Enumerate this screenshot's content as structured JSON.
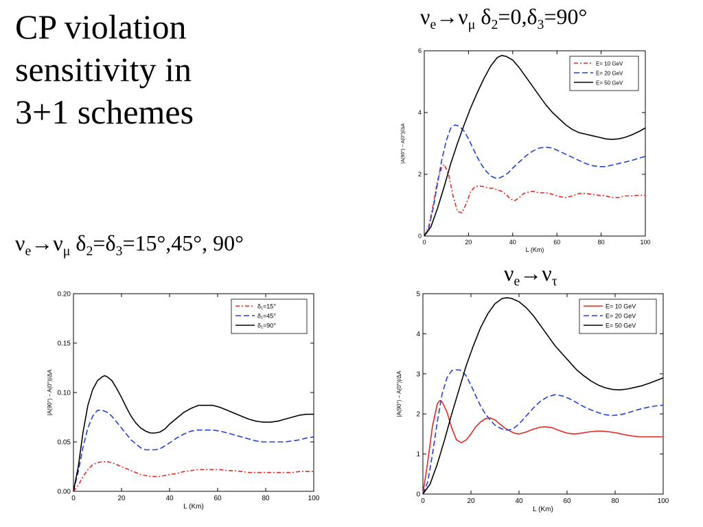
{
  "slide": {
    "title_lines": [
      "CP violation",
      "sensitivity in",
      "3+1 schemes"
    ]
  },
  "captions": {
    "top_right": {
      "nu": "ν",
      "sub_a": "e",
      "arrow": "→",
      "nu2": "ν",
      "sub_b": "μ",
      "rest_1": " δ",
      "sub_c": "2",
      "rest_2": "=0,δ",
      "sub_d": "3",
      "rest_3": "=90°"
    },
    "left": {
      "nu": "ν",
      "sub_a": "e",
      "arrow": "→",
      "nu2": "ν",
      "sub_b": "μ",
      "rest_1": " δ",
      "sub_c": "2",
      "rest_2": "=δ",
      "sub_d": "3",
      "rest_3": "=15°,45°, 90°"
    },
    "tau": {
      "nu": "ν",
      "sub_a": "e",
      "arrow": "→",
      "nu2": "ν",
      "sub_b": "τ"
    }
  },
  "colors": {
    "red": "#e8251f",
    "blue": "#1f3fd8",
    "black": "#000000"
  },
  "chart_data": [
    {
      "id": "top",
      "type": "line",
      "xlabel": "L (Km)",
      "ylabel": "|A(90°) − A(0°)|/ΔA",
      "xlim": [
        0,
        100
      ],
      "ylim": [
        0,
        6
      ],
      "xticks": [
        0,
        20,
        40,
        60,
        80,
        100
      ],
      "yticks": [
        0,
        2,
        4,
        6
      ],
      "legend_position": "top-right",
      "series": [
        {
          "name": "E= 10 GeV",
          "color": "#e8251f",
          "dash": "6,3,2,3",
          "x": [
            0,
            2,
            4,
            6,
            8,
            9,
            11,
            13,
            15,
            17,
            19,
            21,
            23,
            25,
            27,
            29,
            31,
            33,
            35,
            37,
            39,
            41,
            43,
            45,
            47,
            49,
            52,
            55,
            58,
            61,
            64,
            67,
            70,
            73,
            76,
            79,
            82,
            85,
            88,
            91,
            94,
            97,
            100
          ],
          "y": [
            0,
            0.3,
            1.0,
            1.8,
            2.25,
            2.32,
            2.0,
            1.3,
            0.8,
            0.75,
            1.05,
            1.45,
            1.6,
            1.62,
            1.6,
            1.55,
            1.55,
            1.5,
            1.45,
            1.35,
            1.2,
            1.15,
            1.25,
            1.38,
            1.42,
            1.45,
            1.4,
            1.4,
            1.35,
            1.28,
            1.25,
            1.3,
            1.38,
            1.38,
            1.35,
            1.32,
            1.3,
            1.25,
            1.25,
            1.3,
            1.3,
            1.32,
            1.32
          ]
        },
        {
          "name": "E= 20 GeV",
          "color": "#1f3fd8",
          "dash": "8,4",
          "x": [
            0,
            2,
            4,
            6,
            8,
            10,
            12,
            14,
            16,
            18,
            20,
            22,
            24,
            26,
            28,
            30,
            32,
            34,
            36,
            38,
            40,
            43,
            46,
            49,
            52,
            55,
            58,
            61,
            64,
            67,
            70,
            73,
            76,
            79,
            82,
            85,
            88,
            91,
            94,
            97,
            100
          ],
          "y": [
            0,
            0.25,
            0.9,
            1.7,
            2.5,
            3.1,
            3.5,
            3.6,
            3.55,
            3.4,
            3.15,
            2.85,
            2.55,
            2.3,
            2.1,
            1.95,
            1.88,
            1.88,
            1.95,
            2.05,
            2.2,
            2.4,
            2.6,
            2.75,
            2.85,
            2.88,
            2.85,
            2.75,
            2.65,
            2.55,
            2.45,
            2.35,
            2.28,
            2.25,
            2.25,
            2.3,
            2.35,
            2.4,
            2.45,
            2.52,
            2.58
          ]
        },
        {
          "name": "E= 50 GeV",
          "color": "#000000",
          "dash": "",
          "x": [
            0,
            3,
            6,
            9,
            12,
            15,
            18,
            21,
            24,
            27,
            30,
            33,
            35,
            37,
            40,
            43,
            46,
            49,
            52,
            55,
            58,
            61,
            64,
            67,
            70,
            73,
            76,
            79,
            82,
            85,
            88,
            91,
            94,
            97,
            100
          ],
          "y": [
            0,
            0.3,
            0.9,
            1.6,
            2.35,
            3.0,
            3.6,
            4.15,
            4.65,
            5.1,
            5.5,
            5.78,
            5.85,
            5.82,
            5.7,
            5.45,
            5.15,
            4.85,
            4.55,
            4.25,
            4.0,
            3.8,
            3.6,
            3.45,
            3.35,
            3.3,
            3.25,
            3.2,
            3.15,
            3.13,
            3.15,
            3.2,
            3.28,
            3.38,
            3.5
          ]
        }
      ]
    },
    {
      "id": "left",
      "type": "line",
      "xlabel": "L (Km)",
      "ylabel": "|A(90°) − A(0°)|/ΔA",
      "xlim": [
        0,
        100
      ],
      "ylim": [
        0,
        0.2
      ],
      "xticks": [
        0,
        20,
        40,
        60,
        80,
        100
      ],
      "yticks": [
        0.0,
        0.05,
        0.1,
        0.15,
        0.2
      ],
      "ytick_labels": [
        "0.00",
        "0.05",
        "0.10",
        "0.15",
        "0.20"
      ],
      "legend_position": "top-right",
      "series": [
        {
          "name": "δ₁=15°",
          "color": "#e8251f",
          "dash": "6,3,2,3",
          "x": [
            0,
            2,
            4,
            6,
            8,
            10,
            12,
            14,
            16,
            18,
            20,
            22,
            24,
            26,
            28,
            30,
            32,
            34,
            36,
            38,
            40,
            43,
            46,
            49,
            52,
            55,
            58,
            61,
            64,
            67,
            70,
            73,
            76,
            79,
            82,
            85,
            88,
            91,
            94,
            97,
            100
          ],
          "y": [
            0,
            0.006,
            0.015,
            0.022,
            0.027,
            0.029,
            0.03,
            0.03,
            0.029,
            0.027,
            0.025,
            0.023,
            0.021,
            0.019,
            0.017,
            0.016,
            0.015,
            0.015,
            0.015,
            0.016,
            0.017,
            0.018,
            0.02,
            0.021,
            0.022,
            0.022,
            0.022,
            0.022,
            0.021,
            0.021,
            0.02,
            0.019,
            0.019,
            0.019,
            0.019,
            0.019,
            0.019,
            0.019,
            0.02,
            0.02,
            0.02
          ]
        },
        {
          "name": "δ₁=45°",
          "color": "#1f3fd8",
          "dash": "8,4",
          "x": [
            0,
            2,
            4,
            6,
            8,
            10,
            12,
            14,
            16,
            18,
            20,
            22,
            24,
            26,
            28,
            30,
            32,
            34,
            36,
            38,
            40,
            43,
            46,
            49,
            52,
            55,
            58,
            61,
            64,
            67,
            70,
            73,
            76,
            79,
            82,
            85,
            88,
            91,
            94,
            97,
            100
          ],
          "y": [
            0,
            0.02,
            0.045,
            0.064,
            0.076,
            0.082,
            0.082,
            0.08,
            0.076,
            0.07,
            0.064,
            0.058,
            0.052,
            0.048,
            0.044,
            0.042,
            0.042,
            0.042,
            0.043,
            0.046,
            0.049,
            0.054,
            0.058,
            0.061,
            0.062,
            0.062,
            0.062,
            0.061,
            0.059,
            0.057,
            0.055,
            0.053,
            0.051,
            0.05,
            0.05,
            0.05,
            0.05,
            0.051,
            0.052,
            0.054,
            0.055
          ]
        },
        {
          "name": "δ₁=90°",
          "color": "#000000",
          "dash": "",
          "x": [
            0,
            2,
            4,
            6,
            8,
            10,
            12,
            13,
            14,
            16,
            18,
            20,
            22,
            24,
            26,
            28,
            30,
            32,
            34,
            36,
            38,
            40,
            43,
            46,
            49,
            52,
            55,
            58,
            61,
            64,
            67,
            70,
            73,
            76,
            79,
            82,
            85,
            88,
            91,
            94,
            97,
            100
          ],
          "y": [
            0,
            0.025,
            0.06,
            0.087,
            0.103,
            0.112,
            0.116,
            0.117,
            0.116,
            0.112,
            0.104,
            0.095,
            0.085,
            0.076,
            0.069,
            0.064,
            0.061,
            0.059,
            0.059,
            0.06,
            0.063,
            0.068,
            0.074,
            0.08,
            0.084,
            0.087,
            0.087,
            0.087,
            0.085,
            0.082,
            0.079,
            0.076,
            0.073,
            0.071,
            0.07,
            0.07,
            0.071,
            0.073,
            0.075,
            0.077,
            0.078,
            0.078
          ]
        }
      ]
    },
    {
      "id": "tau",
      "type": "line",
      "xlabel": "L (Km)",
      "ylabel": "|A(90°) − A(0°)|/ΔA",
      "xlim": [
        0,
        100
      ],
      "ylim": [
        0,
        5
      ],
      "xticks": [
        0,
        20,
        40,
        60,
        80,
        100
      ],
      "yticks": [
        0,
        1,
        2,
        3,
        4,
        5
      ],
      "legend_position": "top-right",
      "series": [
        {
          "name": "E= 10 GeV",
          "color": "#e8251f",
          "dash": "",
          "x": [
            0,
            2,
            4,
            6,
            7,
            8,
            10,
            12,
            14,
            16,
            18,
            20,
            22,
            24,
            26,
            28,
            30,
            32,
            34,
            36,
            38,
            40,
            43,
            46,
            49,
            51,
            54,
            57,
            60,
            63,
            66,
            69,
            72,
            75,
            78,
            81,
            84,
            87,
            90,
            94,
            100
          ],
          "y": [
            0,
            0.8,
            1.7,
            2.25,
            2.33,
            2.3,
            2.05,
            1.65,
            1.35,
            1.28,
            1.35,
            1.5,
            1.68,
            1.8,
            1.88,
            1.9,
            1.85,
            1.75,
            1.65,
            1.58,
            1.52,
            1.5,
            1.55,
            1.62,
            1.67,
            1.68,
            1.65,
            1.58,
            1.52,
            1.5,
            1.52,
            1.55,
            1.57,
            1.57,
            1.55,
            1.52,
            1.48,
            1.45,
            1.43,
            1.43,
            1.43
          ]
        },
        {
          "name": "E= 20 GeV",
          "color": "#1f3fd8",
          "dash": "8,4",
          "x": [
            0,
            2,
            4,
            6,
            8,
            10,
            12,
            14,
            15,
            16,
            18,
            20,
            22,
            24,
            26,
            28,
            30,
            32,
            34,
            36,
            38,
            40,
            43,
            46,
            49,
            52,
            55,
            58,
            61,
            64,
            67,
            70,
            73,
            76,
            79,
            82,
            85,
            88,
            91,
            94,
            97,
            100
          ],
          "y": [
            0,
            0.3,
            1.0,
            1.8,
            2.5,
            2.9,
            3.08,
            3.1,
            3.1,
            3.08,
            2.95,
            2.72,
            2.45,
            2.2,
            2.0,
            1.85,
            1.72,
            1.65,
            1.6,
            1.6,
            1.65,
            1.75,
            1.95,
            2.15,
            2.32,
            2.43,
            2.48,
            2.45,
            2.38,
            2.28,
            2.18,
            2.1,
            2.03,
            1.98,
            1.96,
            1.98,
            2.02,
            2.08,
            2.13,
            2.17,
            2.2,
            2.22
          ]
        },
        {
          "name": "E= 50 GeV",
          "color": "#000000",
          "dash": "",
          "x": [
            0,
            3,
            6,
            9,
            12,
            15,
            18,
            21,
            24,
            27,
            30,
            33,
            35,
            37,
            40,
            43,
            46,
            49,
            52,
            55,
            58,
            61,
            64,
            67,
            70,
            73,
            76,
            79,
            82,
            85,
            88,
            91,
            94,
            97,
            100
          ],
          "y": [
            0,
            0.25,
            0.75,
            1.35,
            2.0,
            2.6,
            3.2,
            3.7,
            4.15,
            4.5,
            4.75,
            4.88,
            4.9,
            4.88,
            4.8,
            4.65,
            4.45,
            4.2,
            3.95,
            3.7,
            3.5,
            3.3,
            3.1,
            2.95,
            2.82,
            2.72,
            2.65,
            2.61,
            2.6,
            2.62,
            2.66,
            2.7,
            2.76,
            2.83,
            2.9
          ]
        }
      ]
    }
  ]
}
